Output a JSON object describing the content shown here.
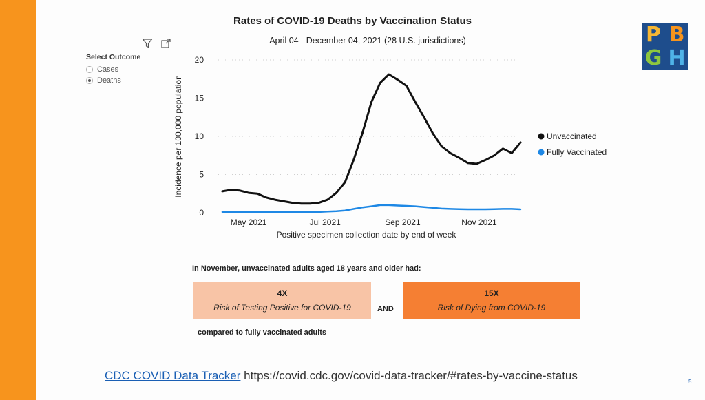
{
  "colors": {
    "side_bar": "#f7941d",
    "unvaccinated": "#111111",
    "fully_vaccinated": "#1e88e5",
    "box_light": "#f8c4a6",
    "box_dark": "#f57f33",
    "link": "#1a5fb4"
  },
  "toolbar": {
    "filter_icon": "filter-icon",
    "expand_icon": "focus-mode-icon"
  },
  "select": {
    "label": "Select Outcome",
    "options": [
      "Cases",
      "Deaths"
    ],
    "selected": "Deaths"
  },
  "logo": {
    "letters": [
      "P",
      "B",
      "G",
      "H"
    ]
  },
  "chart_data": {
    "type": "line",
    "title": "Rates of COVID-19 Deaths by Vaccination Status",
    "subtitle": "April 04 - December 04, 2021 (28 U.S. jurisdictions)",
    "xlabel": "Positive specimen collection date by end of week",
    "ylabel": "Incidence per 100,000 population",
    "ylim": [
      0,
      20
    ],
    "yticks": [
      0,
      5,
      10,
      15,
      20
    ],
    "xticks": [
      {
        "date": "2021-05-01",
        "label": "May 2021"
      },
      {
        "date": "2021-07-01",
        "label": "Jul 2021"
      },
      {
        "date": "2021-09-01",
        "label": "Sep 2021"
      },
      {
        "date": "2021-11-01",
        "label": "Nov 2021"
      }
    ],
    "xlim": [
      "2021-04-04",
      "2021-12-04"
    ],
    "grid": true,
    "legend": "right",
    "x": [
      "2021-04-10",
      "2021-04-17",
      "2021-04-24",
      "2021-05-01",
      "2021-05-08",
      "2021-05-15",
      "2021-05-22",
      "2021-05-29",
      "2021-06-05",
      "2021-06-12",
      "2021-06-19",
      "2021-06-26",
      "2021-07-03",
      "2021-07-10",
      "2021-07-17",
      "2021-07-24",
      "2021-07-31",
      "2021-08-07",
      "2021-08-14",
      "2021-08-21",
      "2021-08-28",
      "2021-09-04",
      "2021-09-11",
      "2021-09-18",
      "2021-09-25",
      "2021-10-02",
      "2021-10-09",
      "2021-10-16",
      "2021-10-23",
      "2021-10-30",
      "2021-11-06",
      "2021-11-13",
      "2021-11-20",
      "2021-11-27",
      "2021-12-04"
    ],
    "series": [
      {
        "name": "Unvaccinated",
        "color": "#111111",
        "values": [
          2.8,
          3.0,
          2.9,
          2.6,
          2.5,
          2.0,
          1.7,
          1.5,
          1.3,
          1.2,
          1.2,
          1.3,
          1.7,
          2.6,
          4.0,
          7.0,
          10.5,
          14.5,
          17.0,
          18.1,
          17.4,
          16.6,
          14.5,
          12.5,
          10.4,
          8.7,
          7.8,
          7.2,
          6.5,
          6.4,
          6.9,
          7.5,
          8.4,
          7.8,
          9.2
        ]
      },
      {
        "name": "Fully Vaccinated",
        "color": "#1e88e5",
        "values": [
          0.1,
          0.12,
          0.12,
          0.1,
          0.1,
          0.08,
          0.08,
          0.08,
          0.08,
          0.08,
          0.1,
          0.1,
          0.15,
          0.2,
          0.3,
          0.5,
          0.7,
          0.85,
          1.0,
          1.0,
          0.95,
          0.9,
          0.85,
          0.75,
          0.65,
          0.55,
          0.5,
          0.48,
          0.45,
          0.45,
          0.45,
          0.48,
          0.5,
          0.5,
          0.45
        ]
      }
    ]
  },
  "summary": {
    "headline": "In November, unvaccinated adults aged 18 years and older had:",
    "box1": {
      "value": "4X",
      "text": "Risk of Testing Positive for COVID-19"
    },
    "connector": "AND",
    "box2": {
      "value": "15X",
      "text": "Risk of Dying from COVID-19"
    },
    "footnote": "compared to fully vaccinated adults"
  },
  "source": {
    "link_text": "CDC COVID Data Tracker",
    "url_text": "https://covid.cdc.gov/covid-data-tracker/#rates-by-vaccine-status"
  },
  "page_number": "5"
}
